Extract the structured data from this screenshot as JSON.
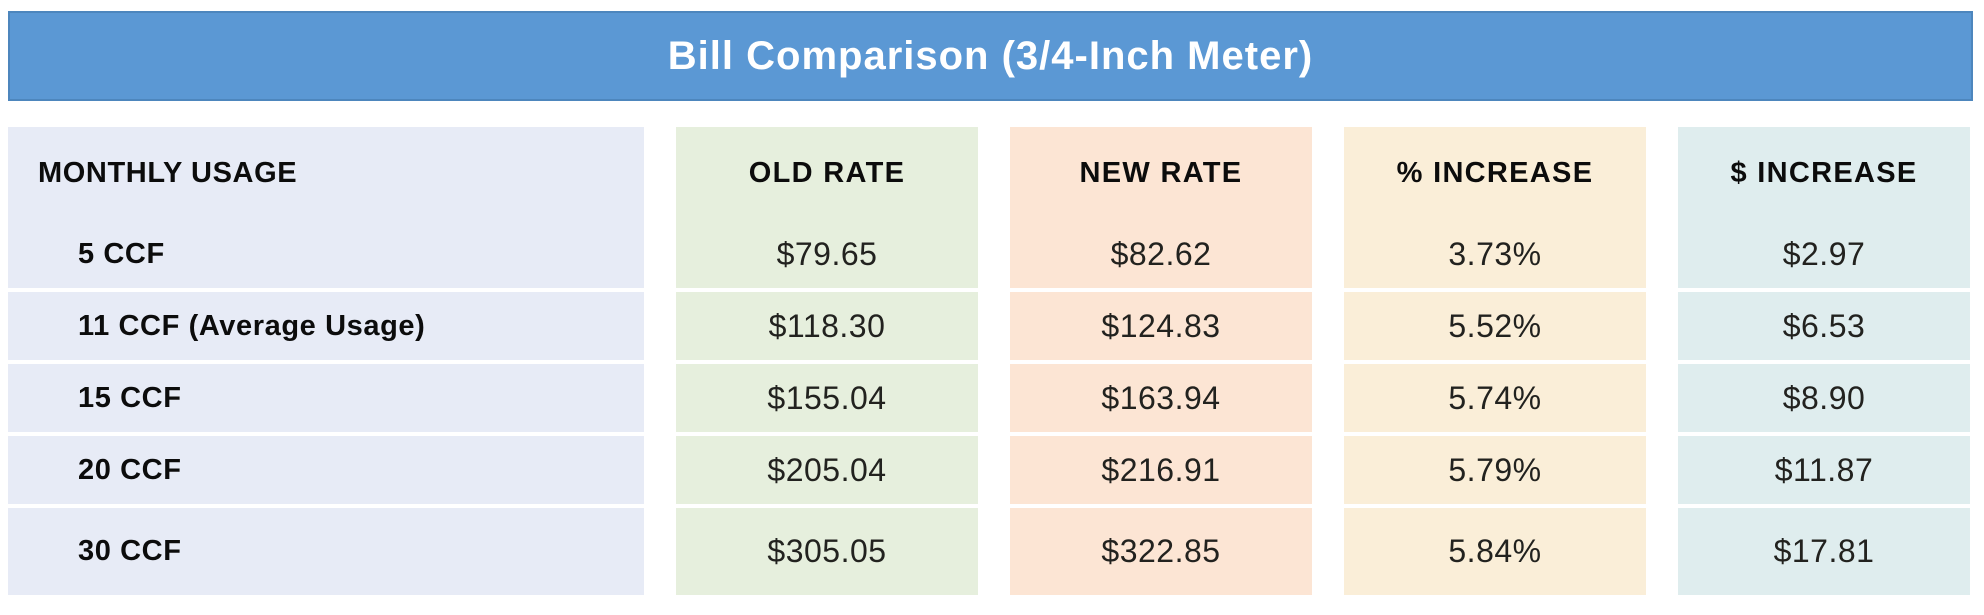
{
  "header": {
    "title": "Bill Comparison (3/4-Inch Meter)"
  },
  "chart_data": {
    "type": "table",
    "title": "Bill Comparison (3/4-Inch Meter)",
    "columns": [
      "MONTHLY USAGE",
      "OLD RATE",
      "NEW RATE",
      "% INCREASE",
      "$ INCREASE"
    ],
    "rows": [
      [
        "5 CCF",
        "$79.65",
        "$82.62",
        "3.73%",
        "$2.97"
      ],
      [
        "11 CCF (Average Usage)",
        "$118.30",
        "$124.83",
        "5.52%",
        "$6.53"
      ],
      [
        "15 CCF",
        "$155.04",
        "$163.94",
        "5.74%",
        "$8.90"
      ],
      [
        "20 CCF",
        "$205.04",
        "$216.91",
        "5.79%",
        "$11.87"
      ],
      [
        "30 CCF",
        "$305.05",
        "$322.85",
        "5.84%",
        "$17.81"
      ]
    ],
    "numeric": {
      "usage_ccf": [
        5,
        11,
        15,
        20,
        30
      ],
      "old_rate_usd": [
        79.65,
        118.3,
        155.04,
        205.04,
        305.05
      ],
      "new_rate_usd": [
        82.62,
        124.83,
        163.94,
        216.91,
        322.85
      ],
      "pct_increase": [
        3.73,
        5.52,
        5.74,
        5.79,
        5.84
      ],
      "dollar_increase_usd": [
        2.97,
        6.53,
        8.9,
        11.87,
        17.81
      ]
    }
  },
  "colors": {
    "title_bar_bg": "#5b98d4",
    "title_bar_border": "#4d86bd",
    "title_text": "#ffffff",
    "col_monthly_usage_bg": "#e7ebf6",
    "col_old_rate_bg": "#e6efdd",
    "col_new_rate_bg": "#fce5d4",
    "col_pct_increase_bg": "#faeed8",
    "col_dollar_increase_bg": "#dfedee",
    "header_text": "#0c0c0c",
    "value_text": "#22221f",
    "page_bg": "#ffffff"
  }
}
